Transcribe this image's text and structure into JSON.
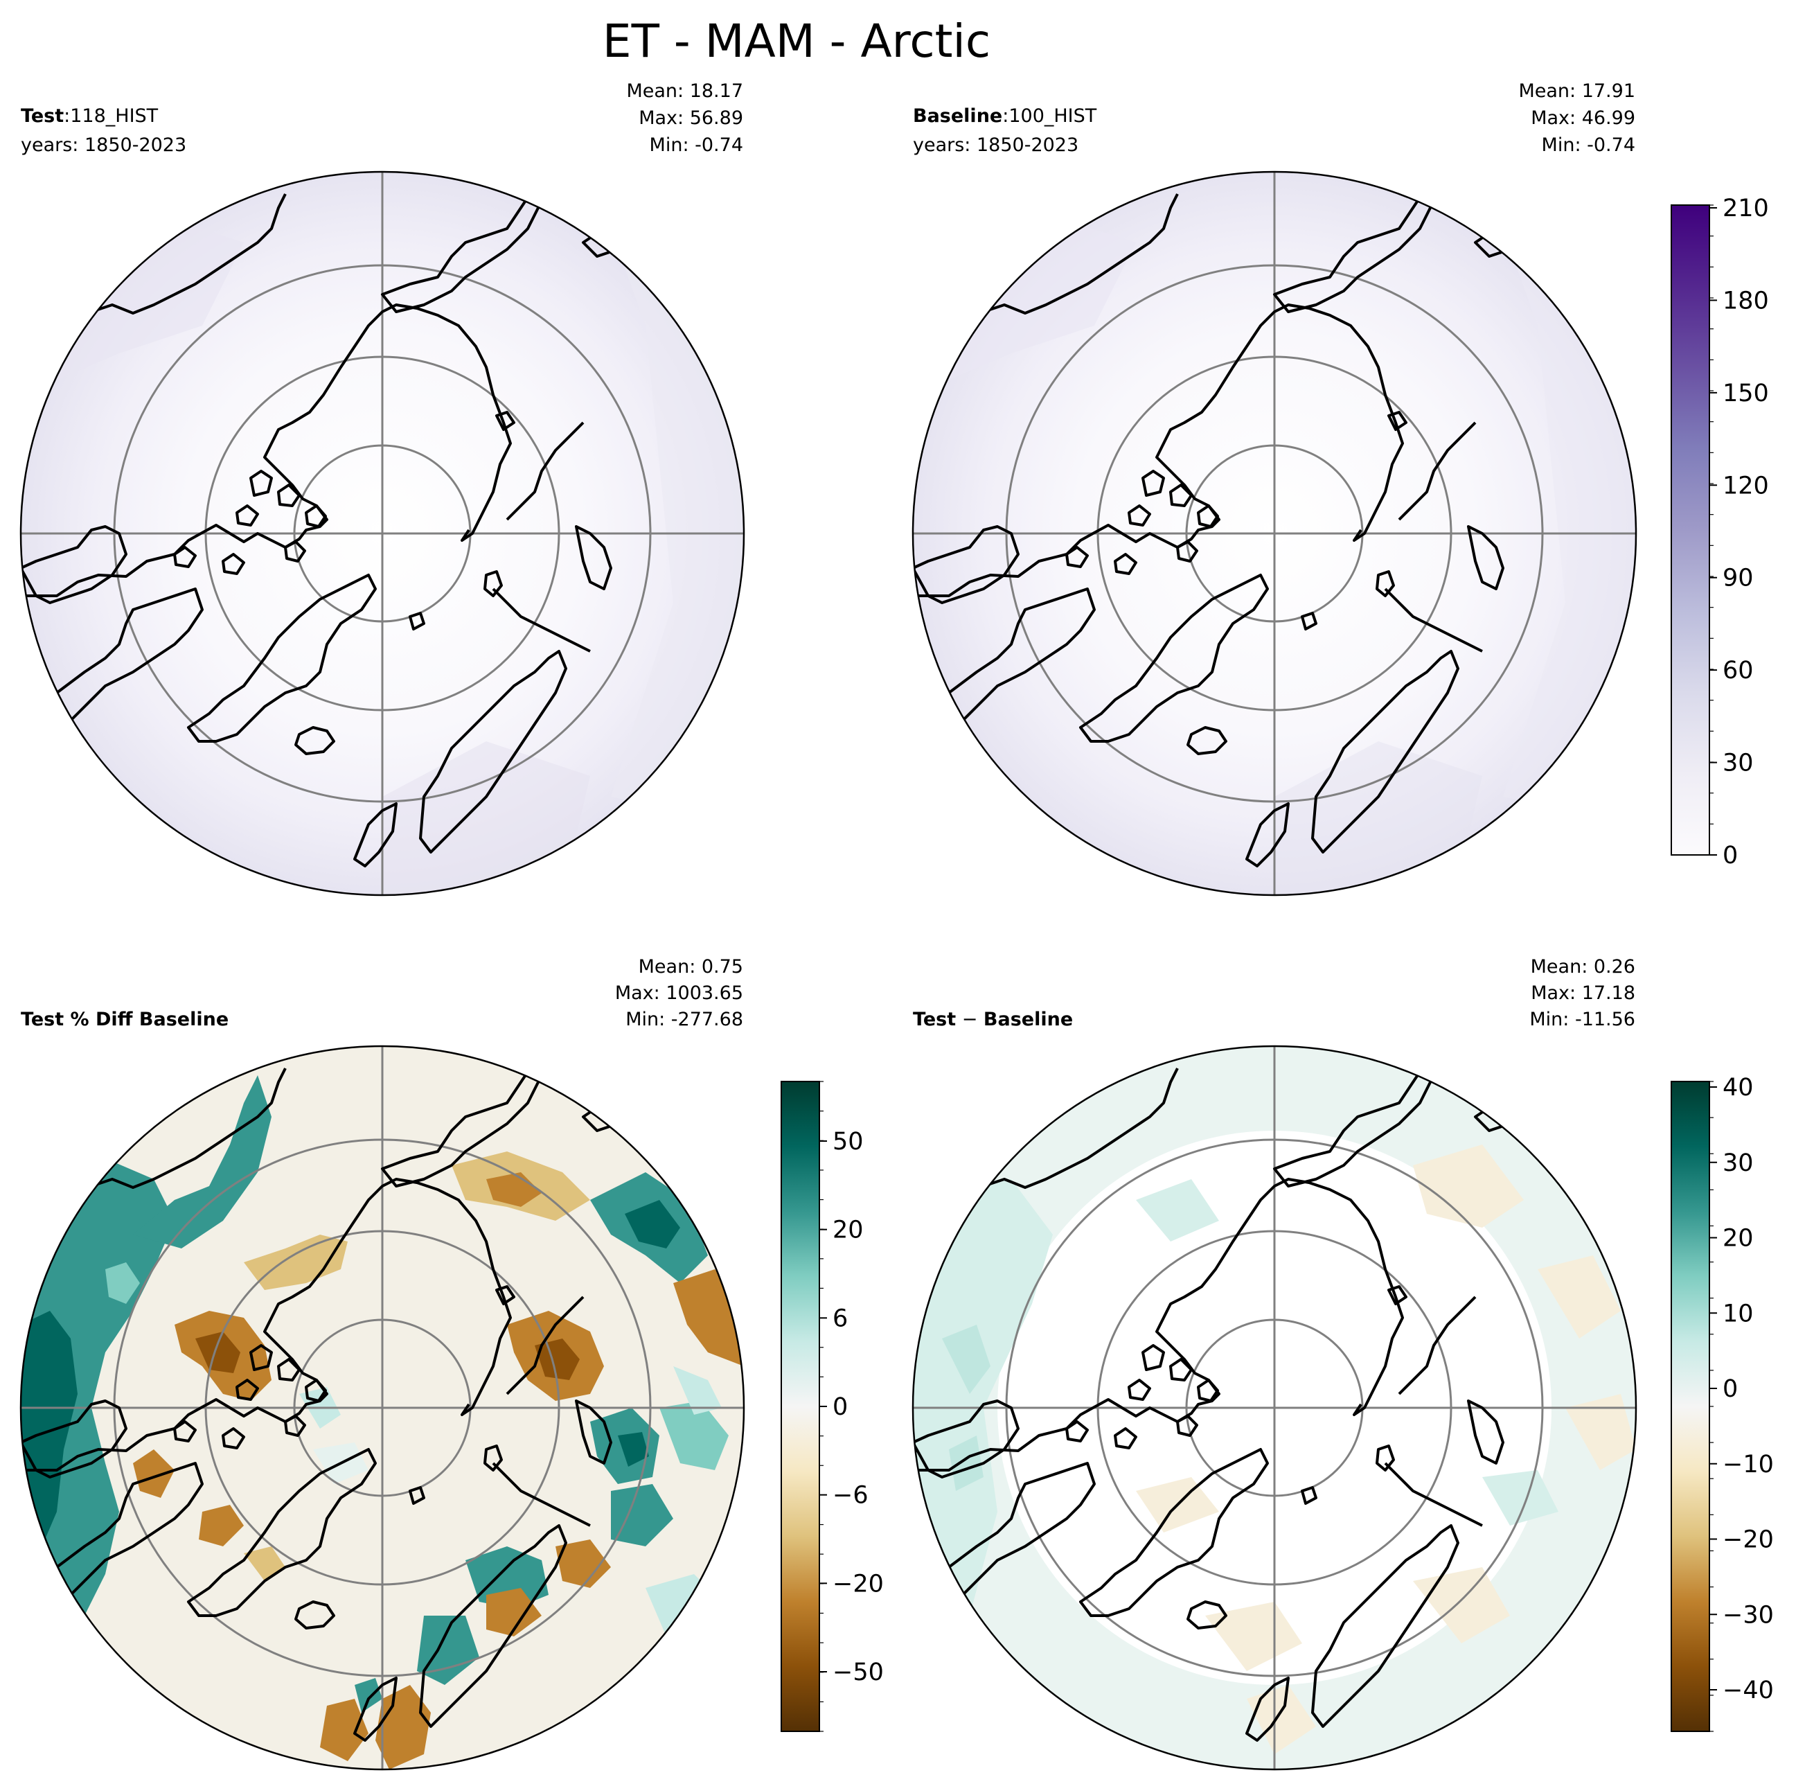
{
  "figure": {
    "title": "ET - MAM - Arctic"
  },
  "panels": [
    {
      "id": "test",
      "label_bold": "Test",
      "label_sep": ":",
      "label_value": "118_HIST",
      "years": "years: 1850-2023",
      "stats": [
        "Mean: 18.17",
        "Max: 56.89",
        "Min: -0.74"
      ],
      "field": "absolute"
    },
    {
      "id": "baseline",
      "label_bold": "Baseline",
      "label_sep": ":",
      "label_value": "100_HIST",
      "years": "years: 1850-2023",
      "stats": [
        "Mean: 17.91",
        "Max: 46.99",
        "Min: -0.74"
      ],
      "field": "absolute"
    },
    {
      "id": "pctdiff",
      "label_bold": "Test % Diff Baseline",
      "label_sep": "",
      "label_value": "",
      "years": "",
      "stats": [
        "Mean:  0.75",
        "Max: 1003.65",
        "Min: -277.68"
      ],
      "field": "pctdiff"
    },
    {
      "id": "diff",
      "label_bold": "Test",
      "label_sep": " − ",
      "label_value": "Baseline",
      "label_value_bold": true,
      "years": "",
      "stats": [
        "Mean:  0.26",
        "Max: 17.18",
        "Min: -11.56"
      ],
      "field": "diff"
    }
  ],
  "colorbars": [
    {
      "id": "cbar-absolute",
      "colormap": "Purples",
      "ticks": [
        "210",
        "180",
        "150",
        "120",
        "90",
        "60",
        "30",
        "0"
      ],
      "n_levels": 21,
      "colors_low_to_high": [
        "#fcfbfd",
        "#efedf5",
        "#dadaeb",
        "#bcbddc",
        "#9e9ac8",
        "#807dba",
        "#6a51a3",
        "#54278f",
        "#3f007d"
      ]
    },
    {
      "id": "cbar-pctdiff",
      "colormap": "BrBG",
      "ticks": [
        "50",
        "20",
        "6",
        "0",
        "−6",
        "−20",
        "−50"
      ],
      "n_levels": 22,
      "colors_low_to_high": [
        "#543005",
        "#8c510a",
        "#bf812d",
        "#dfc27d",
        "#f6e8c3",
        "#f5f5f5",
        "#c7eae5",
        "#80cdc1",
        "#35978f",
        "#01665e",
        "#003c30"
      ]
    },
    {
      "id": "cbar-diff",
      "colormap": "BrBG",
      "ticks": [
        "40",
        "30",
        "20",
        "10",
        "0",
        "−10",
        "−20",
        "−30",
        "−40"
      ],
      "n_levels": 18,
      "colors_low_to_high": [
        "#543005",
        "#8c510a",
        "#bf812d",
        "#dfc27d",
        "#f6e8c3",
        "#f5f5f5",
        "#c7eae5",
        "#80cdc1",
        "#35978f",
        "#01665e",
        "#003c30"
      ]
    }
  ],
  "map": {
    "projection": "north-polar-stereographic",
    "gridline_color": "#808080",
    "coastline_color": "#000000",
    "fill_absolute": "#eeecf6",
    "fill_absolute_pole": "#f8f7fb",
    "fill_pctdiff_base": "#f3f0e6",
    "fill_diff_base": "#f3f0e6",
    "pctdiff_green": "#35978f",
    "pctdiff_darkgreen": "#01665e",
    "pctdiff_brown": "#bf812d",
    "pctdiff_lightgreen": "#c7eae5",
    "diff_lightgreen": "#d6efea"
  }
}
